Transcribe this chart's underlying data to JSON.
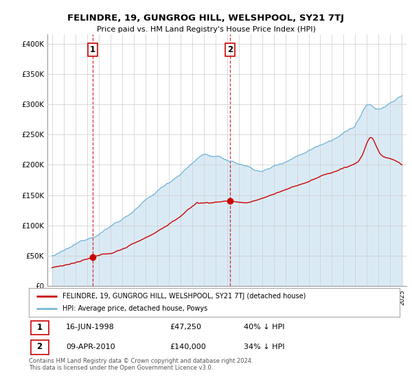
{
  "title": "FELINDRE, 19, GUNGROG HILL, WELSHPOOL, SY21 7TJ",
  "subtitle": "Price paid vs. HM Land Registry's House Price Index (HPI)",
  "ylabel_ticks": [
    "£0",
    "£50K",
    "£100K",
    "£150K",
    "£200K",
    "£250K",
    "£300K",
    "£350K",
    "£400K"
  ],
  "ytick_values": [
    0,
    50000,
    100000,
    150000,
    200000,
    250000,
    300000,
    350000,
    400000
  ],
  "ylim": [
    0,
    415000
  ],
  "xlim_start": 1994.6,
  "xlim_end": 2025.4,
  "sale1_x": 1998.46,
  "sale1_y": 47250,
  "sale2_x": 2010.27,
  "sale2_y": 140000,
  "sale1_date": "16-JUN-1998",
  "sale1_price": "£47,250",
  "sale1_hpi": "40% ↓ HPI",
  "sale2_date": "09-APR-2010",
  "sale2_price": "£140,000",
  "sale2_hpi": "34% ↓ HPI",
  "hpi_color": "#7ab8d9",
  "hpi_fill_color": "#daeaf5",
  "price_color": "#cc0000",
  "vline_color": "#cc0000",
  "grid_color": "#cccccc",
  "legend_label_price": "FELINDRE, 19, GUNGROG HILL, WELSHPOOL, SY21 7TJ (detached house)",
  "legend_label_hpi": "HPI: Average price, detached house, Powys",
  "footnote": "Contains HM Land Registry data © Crown copyright and database right 2024.\nThis data is licensed under the Open Government Licence v3.0."
}
